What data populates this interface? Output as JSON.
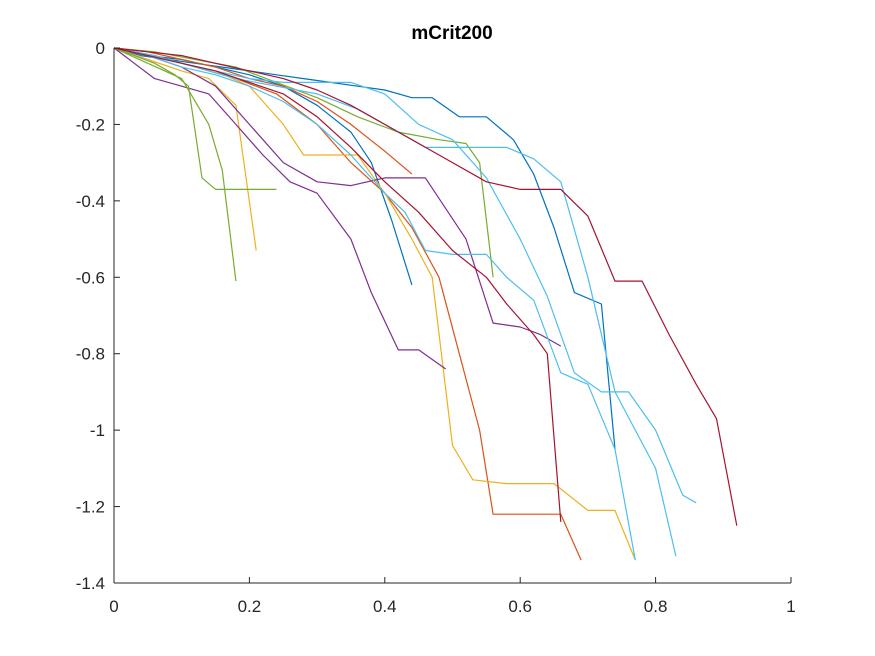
{
  "chart_data": {
    "type": "line",
    "title": "mCrit200",
    "xlabel": "",
    "ylabel": "",
    "xlim": [
      0,
      1
    ],
    "ylim": [
      -1.4,
      0
    ],
    "grid": false,
    "legend": "none",
    "xticks": [
      {
        "value": 0,
        "label": "0"
      },
      {
        "value": 0.2,
        "label": "0.2"
      },
      {
        "value": 0.4,
        "label": "0.4"
      },
      {
        "value": 0.6,
        "label": "0.6"
      },
      {
        "value": 0.8,
        "label": "0.8"
      },
      {
        "value": 1,
        "label": "1"
      }
    ],
    "yticks": [
      {
        "value": 0,
        "label": "0"
      },
      {
        "value": -0.2,
        "label": "-0.2"
      },
      {
        "value": -0.4,
        "label": "-0.4"
      },
      {
        "value": -0.6,
        "label": "-0.6"
      },
      {
        "value": -0.8,
        "label": "-0.8"
      },
      {
        "value": -1,
        "label": "-1"
      },
      {
        "value": -1.2,
        "label": "-1.2"
      },
      {
        "value": -1.4,
        "label": "-1.4"
      }
    ],
    "series": [
      {
        "color": "#0072BD",
        "x": [
          0,
          0.04,
          0.08,
          0.12,
          0.16,
          0.2,
          0.24,
          0.28,
          0.32,
          0.36,
          0.4,
          0.44,
          0.47,
          0.51,
          0.55,
          0.59,
          0.62,
          0.65,
          0.68,
          0.72,
          0.74
        ],
        "y": [
          0,
          -0.02,
          -0.03,
          -0.04,
          -0.05,
          -0.06,
          -0.07,
          -0.08,
          -0.09,
          -0.1,
          -0.11,
          -0.13,
          -0.13,
          -0.18,
          -0.18,
          -0.24,
          -0.33,
          -0.47,
          -0.64,
          -0.67,
          -1.05
        ]
      },
      {
        "color": "#0072BD",
        "x": [
          0,
          0.05,
          0.1,
          0.15,
          0.2,
          0.25,
          0.3,
          0.35,
          0.38,
          0.41,
          0.44
        ],
        "y": [
          0,
          -0.02,
          -0.03,
          -0.05,
          -0.07,
          -0.1,
          -0.15,
          -0.22,
          -0.3,
          -0.45,
          -0.62
        ]
      },
      {
        "color": "#D95319",
        "x": [
          0,
          0.05,
          0.1,
          0.15,
          0.2,
          0.25,
          0.3,
          0.35,
          0.4,
          0.44
        ],
        "y": [
          0,
          -0.01,
          -0.03,
          -0.05,
          -0.08,
          -0.1,
          -0.14,
          -0.2,
          -0.27,
          -0.33
        ]
      },
      {
        "color": "#D95319",
        "x": [
          0,
          0.06,
          0.12,
          0.18,
          0.24,
          0.3,
          0.35,
          0.4,
          0.44,
          0.48,
          0.51,
          0.54,
          0.56,
          0.58,
          0.62,
          0.66,
          0.69
        ],
        "y": [
          0,
          -0.02,
          -0.05,
          -0.08,
          -0.12,
          -0.2,
          -0.3,
          -0.38,
          -0.47,
          -0.6,
          -0.8,
          -1.0,
          -1.22,
          -1.22,
          -1.22,
          -1.22,
          -1.34
        ]
      },
      {
        "color": "#EDB120",
        "x": [
          0,
          0.05,
          0.1,
          0.14,
          0.18,
          0.21
        ],
        "y": [
          0,
          -0.03,
          -0.06,
          -0.08,
          -0.15,
          -0.53
        ]
      },
      {
        "color": "#EDB120",
        "x": [
          0,
          0.05,
          0.1,
          0.15,
          0.2,
          0.25,
          0.28,
          0.32,
          0.36,
          0.4,
          0.44,
          0.47,
          0.5,
          0.53,
          0.58,
          0.65,
          0.7,
          0.74,
          0.77
        ],
        "y": [
          0,
          -0.02,
          -0.04,
          -0.06,
          -0.1,
          -0.2,
          -0.28,
          -0.28,
          -0.28,
          -0.38,
          -0.5,
          -0.6,
          -1.04,
          -1.13,
          -1.14,
          -1.14,
          -1.21,
          -1.21,
          -1.34
        ]
      },
      {
        "color": "#7E2F8E",
        "x": [
          0,
          0.03,
          0.06,
          0.1,
          0.14,
          0.18,
          0.22,
          0.26,
          0.3,
          0.35,
          0.38,
          0.42,
          0.45,
          0.49
        ],
        "y": [
          0,
          -0.04,
          -0.08,
          -0.1,
          -0.12,
          -0.2,
          -0.28,
          -0.35,
          -0.38,
          -0.5,
          -0.64,
          -0.79,
          -0.79,
          -0.84
        ]
      },
      {
        "color": "#7E2F8E",
        "x": [
          0,
          0.05,
          0.1,
          0.15,
          0.2,
          0.25,
          0.3,
          0.35,
          0.4,
          0.46,
          0.52,
          0.56,
          0.6,
          0.63,
          0.66
        ],
        "y": [
          0,
          -0.02,
          -0.05,
          -0.1,
          -0.2,
          -0.3,
          -0.35,
          -0.36,
          -0.34,
          -0.34,
          -0.5,
          -0.72,
          -0.73,
          -0.75,
          -0.78
        ]
      },
      {
        "color": "#77AC30",
        "x": [
          0,
          0.03,
          0.06,
          0.09,
          0.11,
          0.13,
          0.15,
          0.18,
          0.2,
          0.22,
          0.24
        ],
        "y": [
          0,
          -0.02,
          -0.04,
          -0.07,
          -0.1,
          -0.34,
          -0.37,
          -0.37,
          -0.37,
          -0.37,
          -0.37
        ]
      },
      {
        "color": "#77AC30",
        "x": [
          0,
          0.05,
          0.1,
          0.14,
          0.16,
          0.18
        ],
        "y": [
          0,
          -0.04,
          -0.08,
          -0.2,
          -0.32,
          -0.61
        ]
      },
      {
        "color": "#77AC30",
        "x": [
          0,
          0.06,
          0.12,
          0.18,
          0.24,
          0.3,
          0.36,
          0.42,
          0.48,
          0.52,
          0.54,
          0.56
        ],
        "y": [
          0,
          -0.01,
          -0.03,
          -0.05,
          -0.09,
          -0.13,
          -0.18,
          -0.22,
          -0.24,
          -0.25,
          -0.3,
          -0.6
        ]
      },
      {
        "color": "#4DBEEE",
        "x": [
          0,
          0.05,
          0.1,
          0.15,
          0.2,
          0.25,
          0.3,
          0.35,
          0.4,
          0.43,
          0.46,
          0.5,
          0.55,
          0.58,
          0.62,
          0.66,
          0.7,
          0.74,
          0.77
        ],
        "y": [
          0,
          -0.02,
          -0.05,
          -0.07,
          -0.1,
          -0.14,
          -0.2,
          -0.28,
          -0.38,
          -0.43,
          -0.53,
          -0.54,
          -0.54,
          -0.6,
          -0.66,
          -0.85,
          -0.88,
          -1.05,
          -1.34
        ]
      },
      {
        "color": "#4DBEEE",
        "x": [
          0,
          0.06,
          0.12,
          0.18,
          0.24,
          0.3,
          0.36,
          0.42,
          0.46,
          0.52,
          0.58,
          0.62,
          0.66,
          0.7,
          0.74,
          0.77,
          0.8,
          0.83
        ],
        "y": [
          0,
          -0.02,
          -0.05,
          -0.08,
          -0.1,
          -0.12,
          -0.16,
          -0.22,
          -0.26,
          -0.26,
          -0.26,
          -0.29,
          -0.35,
          -0.6,
          -0.9,
          -1.0,
          -1.1,
          -1.33
        ]
      },
      {
        "color": "#4DBEEE",
        "x": [
          0,
          0.05,
          0.1,
          0.15,
          0.2,
          0.25,
          0.3,
          0.35,
          0.4,
          0.45,
          0.5,
          0.55,
          0.6,
          0.64,
          0.68,
          0.72,
          0.76,
          0.8,
          0.84,
          0.86
        ],
        "y": [
          0,
          -0.02,
          -0.04,
          -0.06,
          -0.08,
          -0.09,
          -0.09,
          -0.09,
          -0.12,
          -0.2,
          -0.24,
          -0.34,
          -0.5,
          -0.65,
          -0.85,
          -0.9,
          -0.9,
          -1.0,
          -1.17,
          -1.19
        ]
      },
      {
        "color": "#A2142F",
        "x": [
          0,
          0.05,
          0.1,
          0.15,
          0.2,
          0.25,
          0.3,
          0.35,
          0.4,
          0.45,
          0.5,
          0.55,
          0.6,
          0.66,
          0.7,
          0.74,
          0.78,
          0.82,
          0.86,
          0.89,
          0.92
        ],
        "y": [
          0,
          -0.01,
          -0.02,
          -0.04,
          -0.06,
          -0.08,
          -0.11,
          -0.15,
          -0.2,
          -0.25,
          -0.3,
          -0.35,
          -0.37,
          -0.37,
          -0.44,
          -0.61,
          -0.61,
          -0.75,
          -0.88,
          -0.97,
          -1.25
        ]
      },
      {
        "color": "#A2142F",
        "x": [
          0,
          0.05,
          0.1,
          0.15,
          0.2,
          0.25,
          0.3,
          0.35,
          0.4,
          0.45,
          0.5,
          0.55,
          0.58,
          0.62,
          0.64,
          0.66
        ],
        "y": [
          0,
          -0.02,
          -0.04,
          -0.06,
          -0.09,
          -0.12,
          -0.18,
          -0.26,
          -0.35,
          -0.43,
          -0.53,
          -0.6,
          -0.67,
          -0.75,
          -0.8,
          -1.24
        ]
      }
    ]
  }
}
